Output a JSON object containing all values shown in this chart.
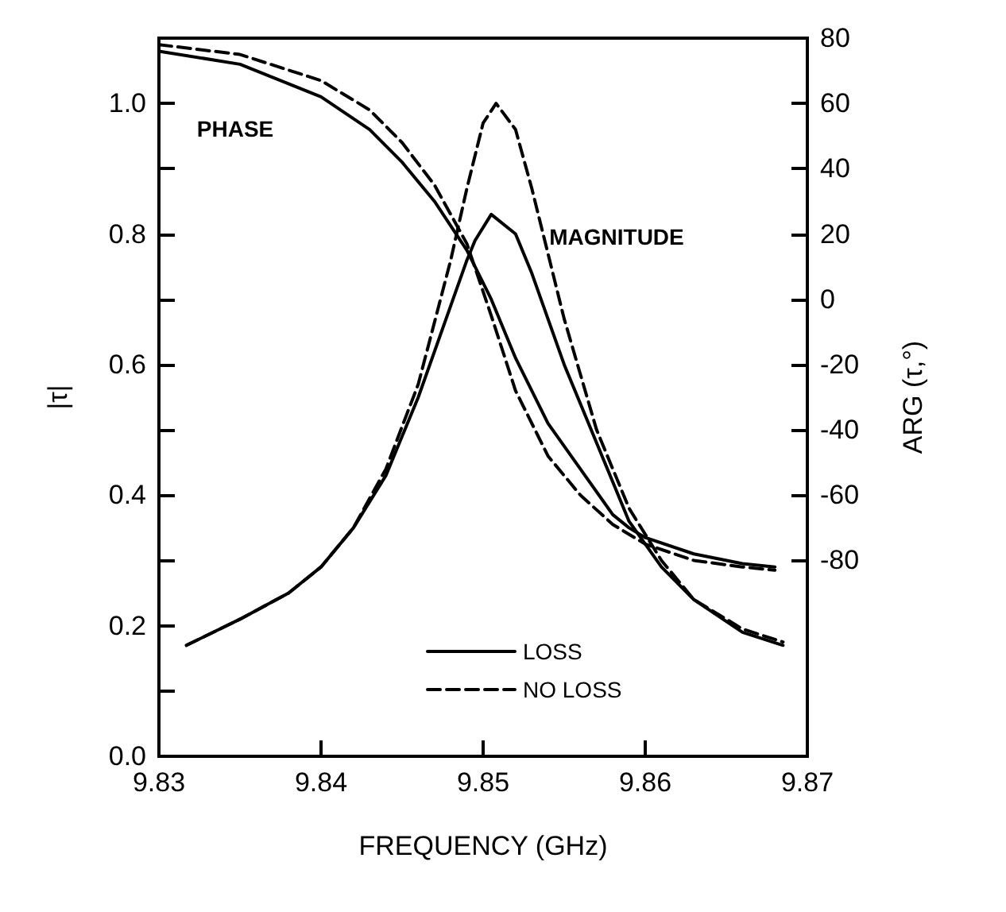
{
  "chart_data": {
    "type": "line",
    "xlabel": "FREQUENCY (GHz)",
    "ylabel": "|τ|",
    "y2label": "ARG (τ,°)",
    "xlim": [
      9.83,
      9.87
    ],
    "xticks": [
      9.83,
      9.84,
      9.85,
      9.86,
      9.87
    ],
    "ylim": [
      0,
      1.1
    ],
    "yticks": [
      {
        "value": 0,
        "label": "0.0"
      },
      {
        "value": 0.1,
        "label": null
      },
      0.2,
      {
        "value": 0.3,
        "label": null
      },
      0.4,
      {
        "value": 0.5,
        "label": null
      },
      0.6,
      {
        "value": 0.7,
        "label": null
      },
      0.8,
      {
        "value": 0.9,
        "label": null
      },
      {
        "value": 1.0,
        "label": "1.0"
      }
    ],
    "y2lim": [
      -140,
      80
    ],
    "y2ticks": [
      -80,
      -60,
      -40,
      -20,
      0,
      20,
      40,
      60,
      80
    ],
    "grid": false,
    "legend": "bottom",
    "marker": "none",
    "annotations": [
      "PHASE",
      "MAGNITUDE"
    ],
    "series": [
      {
        "name": "LOSS",
        "color": "#000000",
        "line_style": "solid",
        "x": [
          9.8317,
          9.835,
          9.838,
          9.84,
          9.842,
          9.844,
          9.846,
          9.848,
          9.849,
          9.8495,
          9.8505,
          9.852,
          9.853,
          9.855,
          9.857,
          9.859,
          9.861,
          9.863,
          9.866,
          9.8685
        ],
        "values": [
          0.17,
          0.21,
          0.25,
          0.29,
          0.35,
          0.43,
          0.55,
          0.69,
          0.76,
          0.79,
          0.83,
          0.8,
          0.74,
          0.6,
          0.48,
          0.36,
          0.29,
          0.24,
          0.19,
          0.17
        ]
      },
      {
        "name": "NO LOSS",
        "color": "#000000",
        "line_style": "dashed",
        "x": [
          9.8317,
          9.835,
          9.838,
          9.84,
          9.842,
          9.844,
          9.846,
          9.848,
          9.849,
          9.85,
          9.8508,
          9.852,
          9.853,
          9.855,
          9.857,
          9.859,
          9.861,
          9.863,
          9.866,
          9.8685
        ],
        "values": [
          0.17,
          0.21,
          0.25,
          0.29,
          0.35,
          0.44,
          0.57,
          0.76,
          0.87,
          0.97,
          1.0,
          0.96,
          0.87,
          0.67,
          0.5,
          0.38,
          0.3,
          0.24,
          0.195,
          0.175
        ]
      },
      {
        "color": "#000000",
        "line_style": "solid",
        "axis": "y2",
        "x": [
          9.83,
          9.835,
          9.84,
          9.843,
          9.845,
          9.847,
          9.849,
          9.8505,
          9.852,
          9.854,
          9.856,
          9.858,
          9.859,
          9.86,
          9.863,
          9.866,
          9.868
        ],
        "values": [
          76,
          72,
          62,
          52,
          42,
          30,
          15,
          0,
          -18,
          -38,
          -52,
          -66,
          -70,
          -73,
          -78,
          -81,
          -82
        ]
      },
      {
        "color": "#000000",
        "line_style": "dashed",
        "axis": "y2",
        "x": [
          9.83,
          9.835,
          9.84,
          9.843,
          9.845,
          9.847,
          9.849,
          9.8505,
          9.852,
          9.854,
          9.856,
          9.858,
          9.86,
          9.863,
          9.866,
          9.868
        ],
        "values": [
          78,
          75,
          67,
          58,
          48,
          35,
          17,
          -5,
          -28,
          -48,
          -60,
          -69,
          -75,
          -80,
          -82,
          -83
        ]
      }
    ]
  }
}
